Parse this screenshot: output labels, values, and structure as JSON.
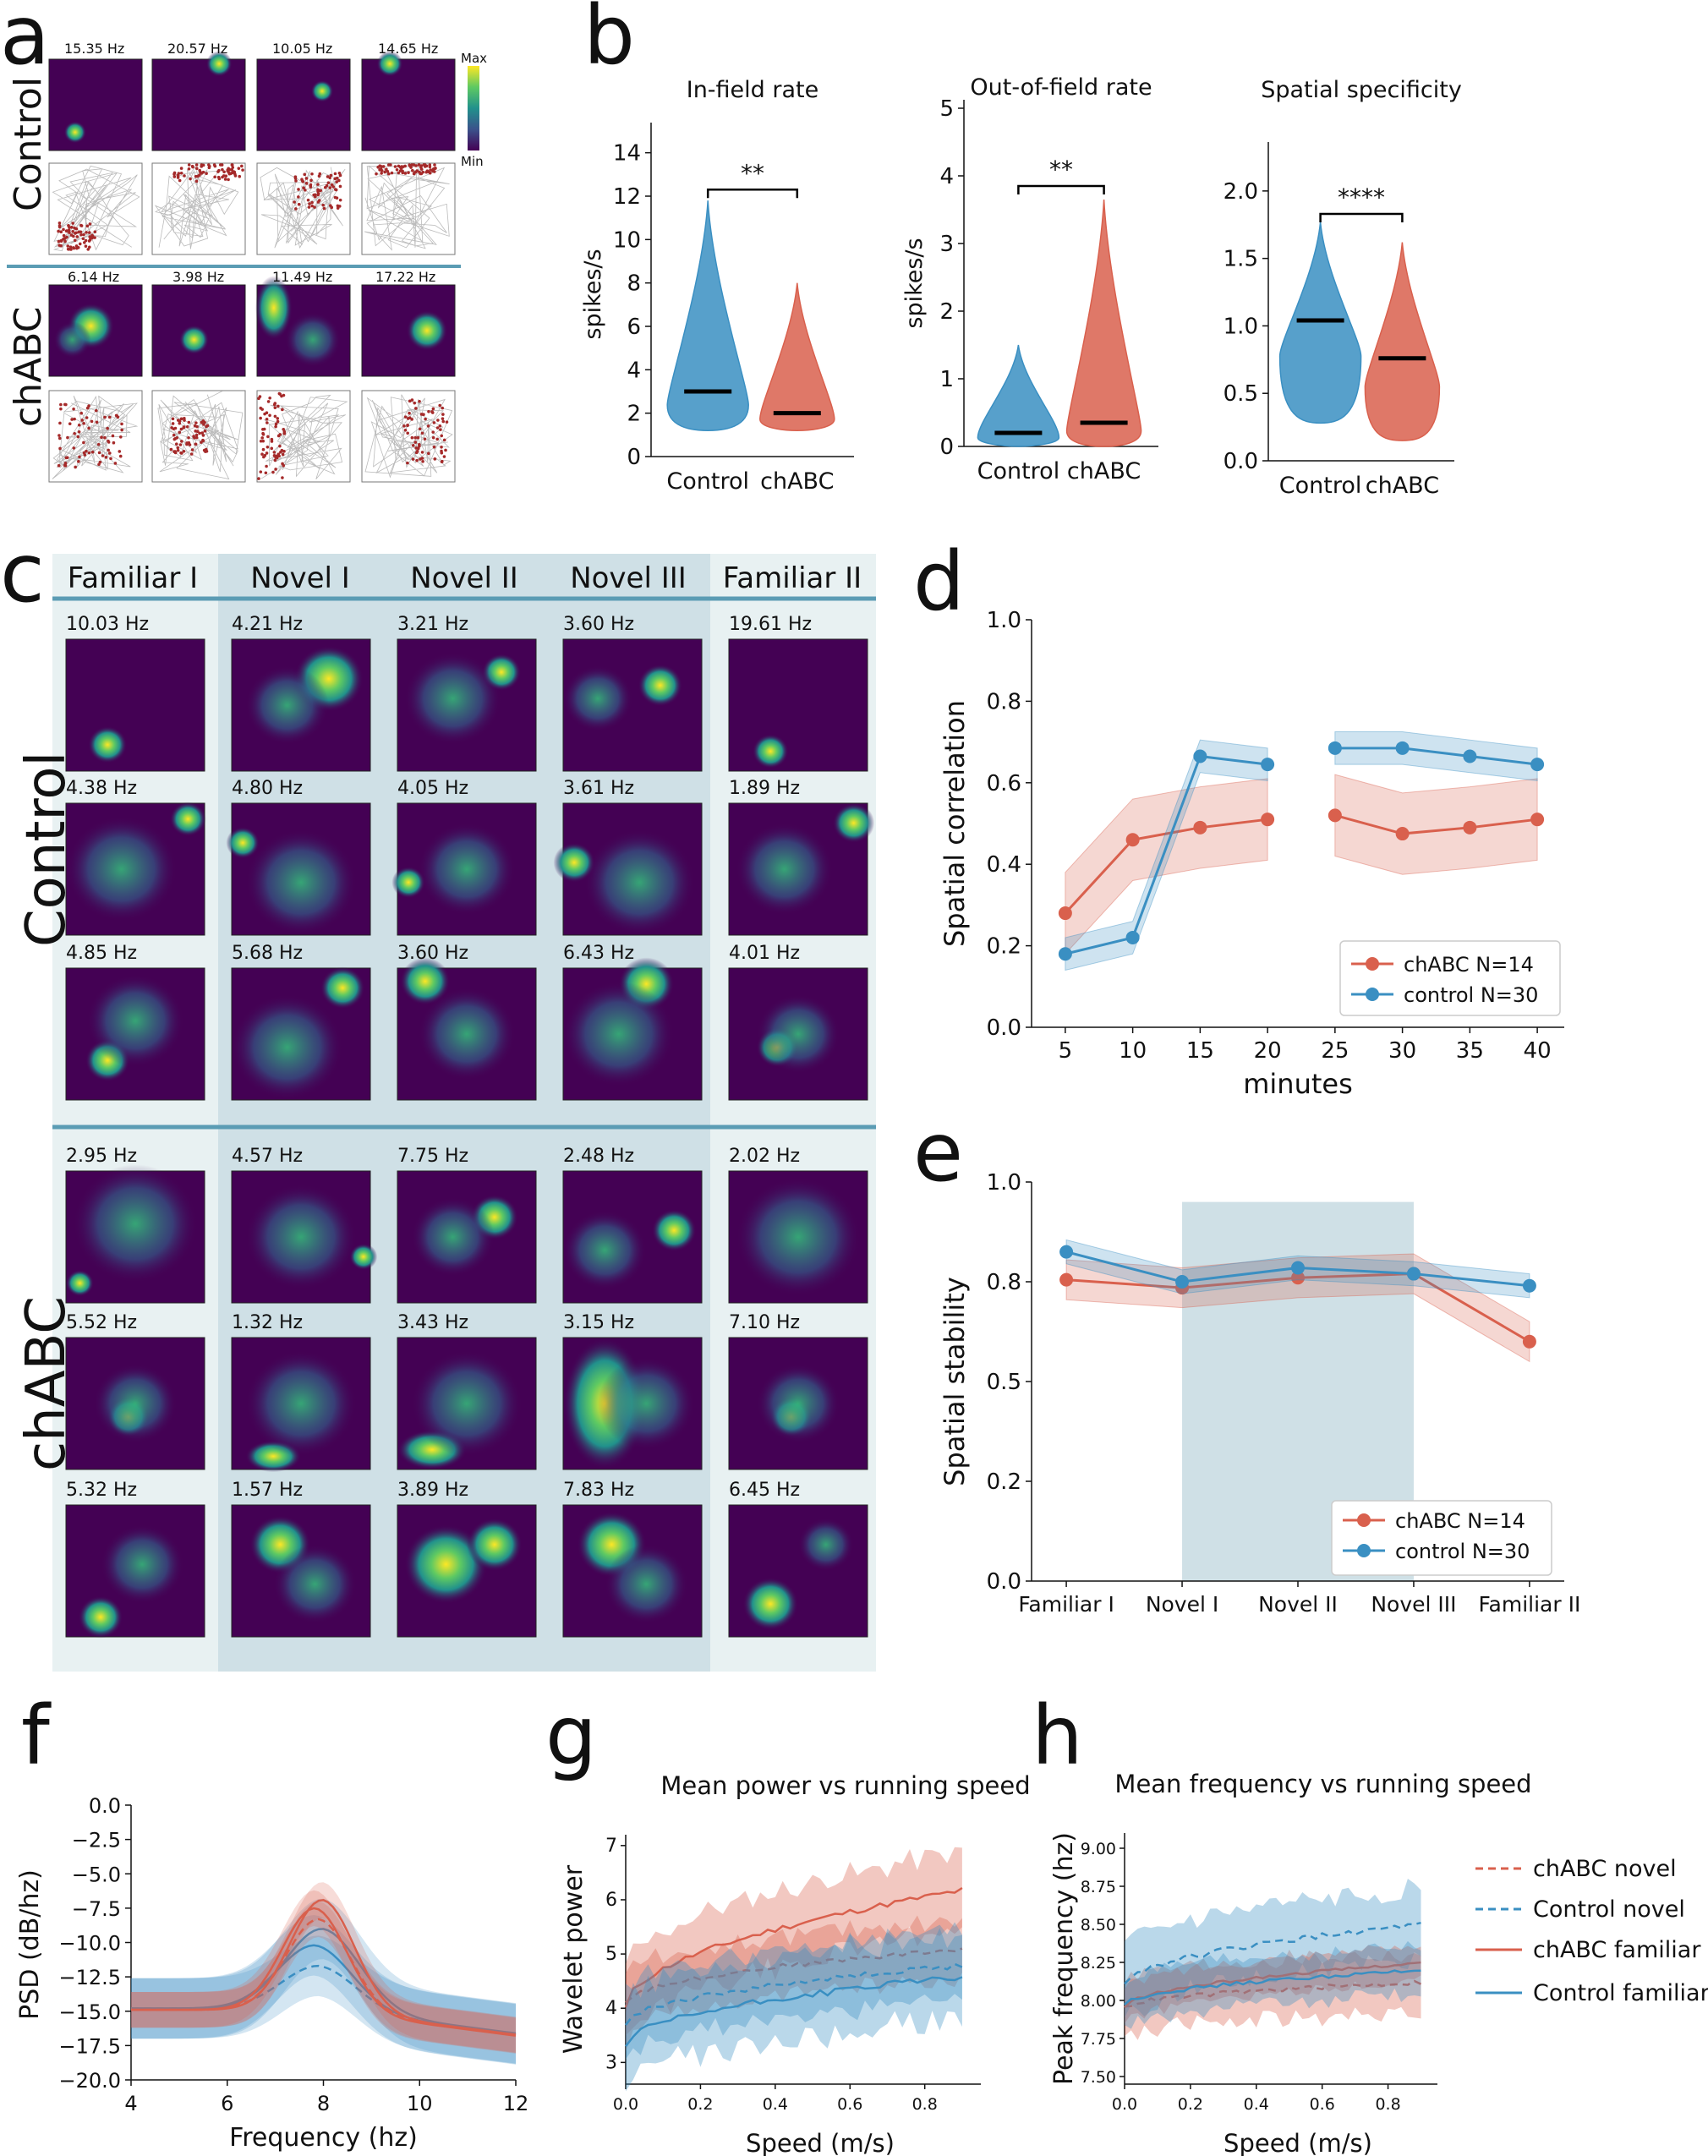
{
  "panels": {
    "a": "a",
    "b": "b",
    "c": "c",
    "d": "d",
    "e": "e",
    "f": "f",
    "g": "g",
    "h": "h"
  },
  "colors": {
    "chabc": "#d9604d",
    "control": "#3a8fc2",
    "viridis_dark": "#440154",
    "viridis_bright": "#fde725",
    "novel_shade": "#cfe0e6",
    "familiar_shade": "#e8f1f2",
    "separator": "#5b9cb4"
  },
  "panel_a": {
    "colorbar_max": "Max",
    "colorbar_min": "Min",
    "row_labels": [
      "Control",
      "chABC"
    ],
    "control_rates": [
      "15.35 Hz",
      "20.57 Hz",
      "10.05 Hz",
      "14.65 Hz"
    ],
    "chabc_rates": [
      "6.14 Hz",
      "3.98 Hz",
      "11.49 Hz",
      "17.22 Hz"
    ]
  },
  "panel_b": {
    "ylabel": "spikes/s",
    "subplots": [
      {
        "title": "In-field rate",
        "ylim": [
          0,
          15
        ],
        "ticks": [
          0,
          2,
          4,
          6,
          8,
          10,
          12,
          14
        ],
        "significance": "**",
        "groups": [
          {
            "name": "Control",
            "median": 3.0,
            "min": 1.2,
            "max": 11.8
          },
          {
            "name": "chABC",
            "median": 2.0,
            "min": 1.2,
            "max": 8.0
          }
        ]
      },
      {
        "title": "Out-of-field rate",
        "ylim": [
          0,
          5
        ],
        "ticks": [
          0,
          1,
          2,
          3,
          4,
          5
        ],
        "significance": "**",
        "groups": [
          {
            "name": "Control",
            "median": 0.2,
            "min": 0.0,
            "max": 1.5
          },
          {
            "name": "chABC",
            "median": 0.35,
            "min": 0.0,
            "max": 3.65
          }
        ]
      },
      {
        "title": "Spatial specificity",
        "ylim": [
          0,
          2.3
        ],
        "ticks": [
          "0.0",
          "0.5",
          "1.0",
          "1.5",
          "2.0"
        ],
        "significance": "****",
        "groups": [
          {
            "name": "Control",
            "median": 1.04,
            "min": 0.28,
            "max": 1.77
          },
          {
            "name": "chABC",
            "median": 0.76,
            "min": 0.15,
            "max": 1.62
          }
        ]
      }
    ]
  },
  "panel_c": {
    "columns": [
      "Familiar I",
      "Novel I",
      "Novel II",
      "Novel III",
      "Familiar II"
    ],
    "row_labels": [
      "Control",
      "chABC"
    ],
    "control_rates": [
      [
        "10.03 Hz",
        "4.21 Hz",
        "3.21 Hz",
        "3.60 Hz",
        "19.61 Hz"
      ],
      [
        "4.38 Hz",
        "4.80 Hz",
        "4.05 Hz",
        "3.61 Hz",
        "1.89 Hz"
      ],
      [
        "4.85 Hz",
        "5.68 Hz",
        "3.60 Hz",
        "6.43 Hz",
        "4.01 Hz"
      ]
    ],
    "chabc_rates": [
      [
        "2.95 Hz",
        "4.57 Hz",
        "7.75 Hz",
        "2.48 Hz",
        "2.02 Hz"
      ],
      [
        "5.52 Hz",
        "1.32 Hz",
        "3.43 Hz",
        "3.15 Hz",
        "7.10 Hz"
      ],
      [
        "5.32 Hz",
        "1.57 Hz",
        "3.89 Hz",
        "7.83 Hz",
        "6.45 Hz"
      ]
    ]
  },
  "chart_data": [
    {
      "id": "b1",
      "type": "violin",
      "title": "In-field rate",
      "ylabel": "spikes/s",
      "categories": [
        "Control",
        "chABC"
      ]
    },
    {
      "id": "d",
      "type": "line",
      "xlabel": "minutes",
      "ylabel": "Spatial correlation",
      "ylim": [
        0,
        1
      ],
      "x": [
        5,
        10,
        15,
        20,
        25,
        30,
        35,
        40
      ],
      "xticks": [
        5,
        10,
        15,
        20,
        25,
        30,
        35,
        40
      ],
      "yticks": [
        "0.0",
        "0.2",
        "0.4",
        "0.6",
        "0.8",
        "1.0"
      ],
      "series": [
        {
          "name": "chABC N=14",
          "color": "chabc",
          "segments": [
            [
              [
                5,
                0.28
              ],
              [
                10,
                0.46
              ],
              [
                15,
                0.49
              ],
              [
                20,
                0.51
              ]
            ],
            [
              [
                25,
                0.52
              ],
              [
                30,
                0.475
              ],
              [
                35,
                0.49
              ],
              [
                40,
                0.51
              ]
            ]
          ],
          "band": 0.1
        },
        {
          "name": "control N=30",
          "color": "control",
          "segments": [
            [
              [
                5,
                0.18
              ],
              [
                10,
                0.22
              ],
              [
                15,
                0.665
              ],
              [
                20,
                0.645
              ]
            ],
            [
              [
                25,
                0.685
              ],
              [
                30,
                0.685
              ],
              [
                35,
                0.665
              ],
              [
                40,
                0.645
              ]
            ]
          ],
          "band": 0.04
        }
      ]
    },
    {
      "id": "e",
      "type": "line",
      "ylabel": "Spatial stability",
      "ylim": [
        0,
        1
      ],
      "categories": [
        "Familiar I",
        "Novel I",
        "Novel II",
        "Novel III",
        "Familiar II"
      ],
      "yticks": [
        "0.0",
        "0.2",
        "0.5",
        "0.8",
        "1.0"
      ],
      "shaded_region": [
        "Novel I",
        "Novel III"
      ],
      "series": [
        {
          "name": "chABC N=14",
          "color": "chabc",
          "values": [
            0.755,
            0.735,
            0.76,
            0.77,
            0.6
          ],
          "band": 0.05
        },
        {
          "name": "control N=30",
          "color": "control",
          "values": [
            0.825,
            0.75,
            0.785,
            0.77,
            0.74
          ],
          "band": 0.03
        }
      ]
    },
    {
      "id": "f",
      "type": "line",
      "xlabel": "Frequency (hz)",
      "ylabel": "PSD (dB/hz)",
      "xlim": [
        4,
        12
      ],
      "ylim": [
        -20,
        0
      ],
      "xticks": [
        4,
        6,
        8,
        10,
        12
      ],
      "yticks": [
        "0.0",
        "−2.5",
        "−5.0",
        "−7.5",
        "−10.0",
        "−12.5",
        "−15.0",
        "−17.5",
        "−20.0"
      ],
      "series": [
        {
          "name": "chABC",
          "color": "chabc",
          "peak": -7.5,
          "peak_x": 7.9
        },
        {
          "name": "Control",
          "color": "control",
          "peak": -10.2,
          "peak_x": 7.9
        }
      ]
    },
    {
      "id": "g",
      "type": "line",
      "title": "Mean power vs running speed",
      "xlabel": "Speed (m/s)",
      "ylabel": "Wavelet power",
      "xlim": [
        0,
        0.95
      ],
      "ylim": [
        2.6,
        7.2
      ],
      "xticks": [
        "0.0",
        "0.2",
        "0.4",
        "0.6",
        "0.8"
      ],
      "yticks": [
        3,
        4,
        5,
        6,
        7
      ],
      "series": [
        {
          "name": "chABC familiar",
          "style": "solid",
          "color": "chabc",
          "y0": 4.0,
          "y1": 6.2
        },
        {
          "name": "chABC novel",
          "style": "dashed",
          "color": "chabc",
          "y0": 4.1,
          "y1": 5.1
        },
        {
          "name": "Control familiar",
          "style": "solid",
          "color": "control",
          "y0": 3.3,
          "y1": 4.6
        },
        {
          "name": "Control novel",
          "style": "dashed",
          "color": "control",
          "y0": 3.7,
          "y1": 4.8
        }
      ]
    },
    {
      "id": "h",
      "type": "line",
      "title": "Mean frequency vs running speed",
      "xlabel": "Speed (m/s)",
      "ylabel": "Peak frequency (hz)",
      "xlim": [
        0,
        0.95
      ],
      "ylim": [
        7.45,
        9.1
      ],
      "xticks": [
        "0.0",
        "0.2",
        "0.4",
        "0.6",
        "0.8"
      ],
      "yticks": [
        "7.50",
        "7.75",
        "8.00",
        "8.25",
        "8.50",
        "8.75",
        "9.00"
      ],
      "series": [
        {
          "name": "chABC novel",
          "style": "dashed",
          "color": "chabc",
          "y0": 7.95,
          "y1": 8.12
        },
        {
          "name": "Control novel",
          "style": "dashed",
          "color": "control",
          "y0": 8.1,
          "y1": 8.5
        },
        {
          "name": "chABC familiar",
          "style": "solid",
          "color": "chabc",
          "y0": 7.95,
          "y1": 8.25
        },
        {
          "name": "Control familiar",
          "style": "solid",
          "color": "control",
          "y0": 7.97,
          "y1": 8.2
        }
      ]
    }
  ],
  "legend_gh": [
    "chABC novel",
    "Control novel",
    "chABC familiar",
    "Control familiar"
  ]
}
